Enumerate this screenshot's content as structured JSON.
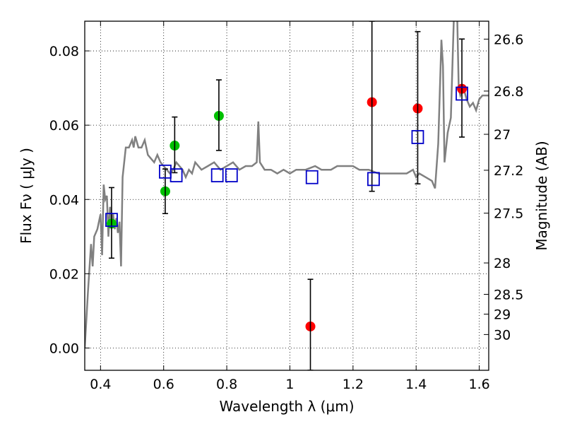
{
  "chart_data": {
    "type": "scatter",
    "xlabel": "Wavelength  λ (μm)",
    "ylabel": "Flux  Fν  ( μJy )",
    "ylabel_right": "Magnitude (AB)",
    "xlim": [
      0.35,
      1.63
    ],
    "ylim": [
      -0.006,
      0.088
    ],
    "grid": true,
    "x_ticks": [
      {
        "value": 0.4,
        "label": "0.4"
      },
      {
        "value": 0.6,
        "label": "0.6"
      },
      {
        "value": 0.8,
        "label": "0.8"
      },
      {
        "value": 1.0,
        "label": "1"
      },
      {
        "value": 1.2,
        "label": "1.2"
      },
      {
        "value": 1.4,
        "label": "1.4"
      },
      {
        "value": 1.6,
        "label": "1.6"
      }
    ],
    "y_ticks": [
      {
        "value": 0.0,
        "label": "0.00"
      },
      {
        "value": 0.02,
        "label": "0.02"
      },
      {
        "value": 0.04,
        "label": "0.04"
      },
      {
        "value": 0.06,
        "label": "0.06"
      },
      {
        "value": 0.08,
        "label": "0.08"
      }
    ],
    "mag_ticks": [
      {
        "mag": 26.6,
        "label": "26.6"
      },
      {
        "mag": 26.8,
        "label": "26.8"
      },
      {
        "mag": 27.0,
        "label": "27"
      },
      {
        "mag": 27.2,
        "label": "27.2"
      },
      {
        "mag": 27.5,
        "label": "27.5"
      },
      {
        "mag": 28.0,
        "label": "28"
      },
      {
        "mag": 28.5,
        "label": "28.5"
      },
      {
        "mag": 29.0,
        "label": "29"
      },
      {
        "mag": 30.0,
        "label": "30"
      }
    ],
    "series": [
      {
        "kind": "line",
        "color": "#808080",
        "points": [
          [
            0.35,
            0.0
          ],
          [
            0.36,
            0.015
          ],
          [
            0.37,
            0.028
          ],
          [
            0.375,
            0.022
          ],
          [
            0.38,
            0.03
          ],
          [
            0.39,
            0.032
          ],
          [
            0.4,
            0.036
          ],
          [
            0.405,
            0.025
          ],
          [
            0.41,
            0.044
          ],
          [
            0.415,
            0.04
          ],
          [
            0.42,
            0.041
          ],
          [
            0.425,
            0.03
          ],
          [
            0.43,
            0.038
          ],
          [
            0.435,
            0.034
          ],
          [
            0.44,
            0.036
          ],
          [
            0.445,
            0.032
          ],
          [
            0.45,
            0.035
          ],
          [
            0.455,
            0.031
          ],
          [
            0.46,
            0.034
          ],
          [
            0.465,
            0.022
          ],
          [
            0.47,
            0.046
          ],
          [
            0.48,
            0.054
          ],
          [
            0.49,
            0.054
          ],
          [
            0.5,
            0.056
          ],
          [
            0.505,
            0.054
          ],
          [
            0.51,
            0.057
          ],
          [
            0.52,
            0.054
          ],
          [
            0.53,
            0.054
          ],
          [
            0.54,
            0.056
          ],
          [
            0.55,
            0.052
          ],
          [
            0.56,
            0.051
          ],
          [
            0.57,
            0.05
          ],
          [
            0.58,
            0.052
          ],
          [
            0.59,
            0.05
          ],
          [
            0.6,
            0.049
          ],
          [
            0.62,
            0.047
          ],
          [
            0.63,
            0.048
          ],
          [
            0.64,
            0.05
          ],
          [
            0.65,
            0.049
          ],
          [
            0.66,
            0.048
          ],
          [
            0.67,
            0.046
          ],
          [
            0.68,
            0.048
          ],
          [
            0.69,
            0.047
          ],
          [
            0.7,
            0.05
          ],
          [
            0.72,
            0.048
          ],
          [
            0.74,
            0.049
          ],
          [
            0.76,
            0.05
          ],
          [
            0.78,
            0.048
          ],
          [
            0.8,
            0.049
          ],
          [
            0.82,
            0.05
          ],
          [
            0.84,
            0.048
          ],
          [
            0.86,
            0.049
          ],
          [
            0.88,
            0.049
          ],
          [
            0.895,
            0.05
          ],
          [
            0.9,
            0.061
          ],
          [
            0.905,
            0.05
          ],
          [
            0.92,
            0.048
          ],
          [
            0.94,
            0.048
          ],
          [
            0.96,
            0.047
          ],
          [
            0.98,
            0.048
          ],
          [
            1.0,
            0.047
          ],
          [
            1.02,
            0.048
          ],
          [
            1.05,
            0.048
          ],
          [
            1.08,
            0.049
          ],
          [
            1.1,
            0.048
          ],
          [
            1.13,
            0.048
          ],
          [
            1.15,
            0.049
          ],
          [
            1.18,
            0.049
          ],
          [
            1.2,
            0.049
          ],
          [
            1.22,
            0.048
          ],
          [
            1.25,
            0.048
          ],
          [
            1.28,
            0.047
          ],
          [
            1.3,
            0.047
          ],
          [
            1.33,
            0.047
          ],
          [
            1.35,
            0.047
          ],
          [
            1.37,
            0.047
          ],
          [
            1.39,
            0.048
          ],
          [
            1.4,
            0.046
          ],
          [
            1.41,
            0.047
          ],
          [
            1.43,
            0.046
          ],
          [
            1.45,
            0.045
          ],
          [
            1.46,
            0.043
          ],
          [
            1.47,
            0.055
          ],
          [
            1.48,
            0.083
          ],
          [
            1.485,
            0.076
          ],
          [
            1.49,
            0.05
          ],
          [
            1.5,
            0.058
          ],
          [
            1.51,
            0.062
          ],
          [
            1.52,
            0.09
          ],
          [
            1.53,
            0.09
          ],
          [
            1.535,
            0.07
          ],
          [
            1.54,
            0.068
          ],
          [
            1.55,
            0.07
          ],
          [
            1.56,
            0.067
          ],
          [
            1.57,
            0.065
          ],
          [
            1.58,
            0.066
          ],
          [
            1.59,
            0.064
          ],
          [
            1.6,
            0.067
          ],
          [
            1.61,
            0.068
          ],
          [
            1.63,
            0.068
          ]
        ]
      },
      {
        "kind": "points",
        "marker": "circle",
        "color": "#00c000",
        "points": [
          {
            "x": 0.435,
            "y": 0.0335,
            "err": null
          },
          {
            "x": 0.605,
            "y": 0.0422,
            "err": null
          },
          {
            "x": 0.635,
            "y": 0.0545,
            "err": null
          },
          {
            "x": 0.775,
            "y": 0.0625,
            "err": null
          }
        ]
      },
      {
        "kind": "points",
        "marker": "circle",
        "color": "#ff0000",
        "points": [
          {
            "x": 1.065,
            "y": 0.0058,
            "err": null
          },
          {
            "x": 1.26,
            "y": 0.0662,
            "err": null
          },
          {
            "x": 1.405,
            "y": 0.0645,
            "err": null
          },
          {
            "x": 1.545,
            "y": 0.0698,
            "err": null
          }
        ]
      },
      {
        "kind": "errorbars",
        "color": "#000000",
        "bars": [
          {
            "x": 0.435,
            "low": 0.0242,
            "high": 0.0432
          },
          {
            "x": 0.605,
            "low": 0.0362,
            "high": 0.0482
          },
          {
            "x": 0.635,
            "low": 0.0472,
            "high": 0.0622
          },
          {
            "x": 0.775,
            "low": 0.0532,
            "high": 0.0722
          },
          {
            "x": 1.065,
            "low": -0.006,
            "high": 0.0185
          },
          {
            "x": 1.26,
            "low": 0.0422,
            "high": 0.088
          },
          {
            "x": 1.405,
            "low": 0.0442,
            "high": 0.0852
          },
          {
            "x": 1.545,
            "low": 0.0568,
            "high": 0.0832
          }
        ]
      },
      {
        "kind": "points",
        "marker": "square",
        "color": "#0000c8",
        "points": [
          {
            "x": 0.435,
            "y": 0.0345
          },
          {
            "x": 0.605,
            "y": 0.0475
          },
          {
            "x": 0.64,
            "y": 0.0465
          },
          {
            "x": 0.77,
            "y": 0.0465
          },
          {
            "x": 0.815,
            "y": 0.0465
          },
          {
            "x": 1.07,
            "y": 0.046
          },
          {
            "x": 1.265,
            "y": 0.0455
          },
          {
            "x": 1.405,
            "y": 0.0568
          },
          {
            "x": 1.545,
            "y": 0.0685
          }
        ]
      }
    ]
  }
}
